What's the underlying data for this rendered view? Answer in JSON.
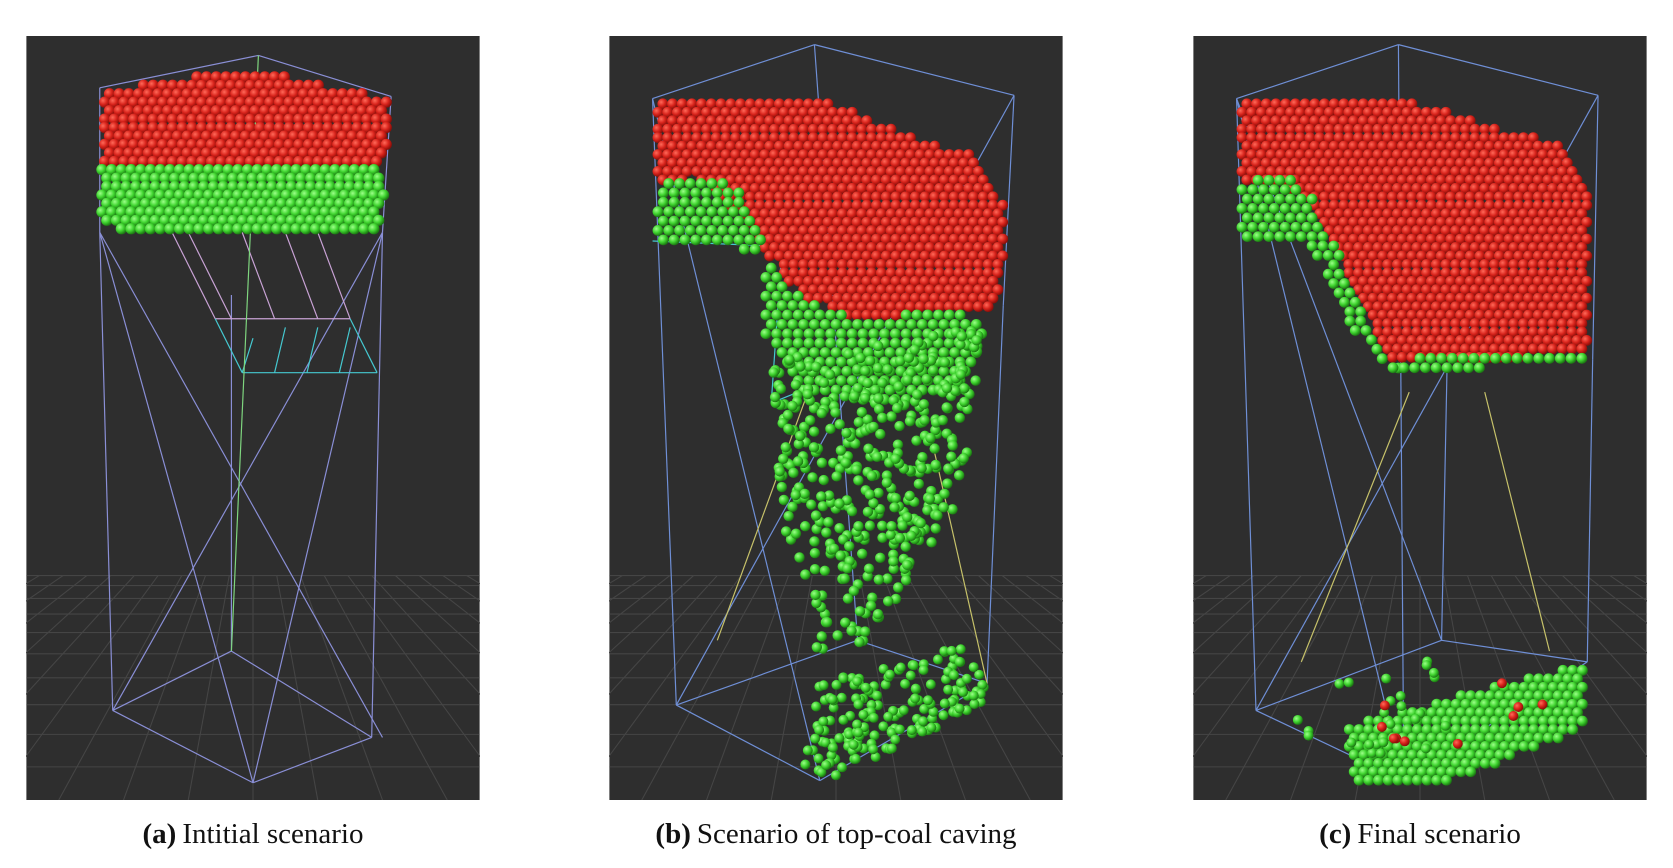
{
  "panels": [
    {
      "label": "(a)",
      "caption": "Intitial scenario"
    },
    {
      "label": "(b)",
      "caption": "Scenario of top-coal caving"
    },
    {
      "label": "(c)",
      "caption": "Final scenario"
    }
  ]
}
